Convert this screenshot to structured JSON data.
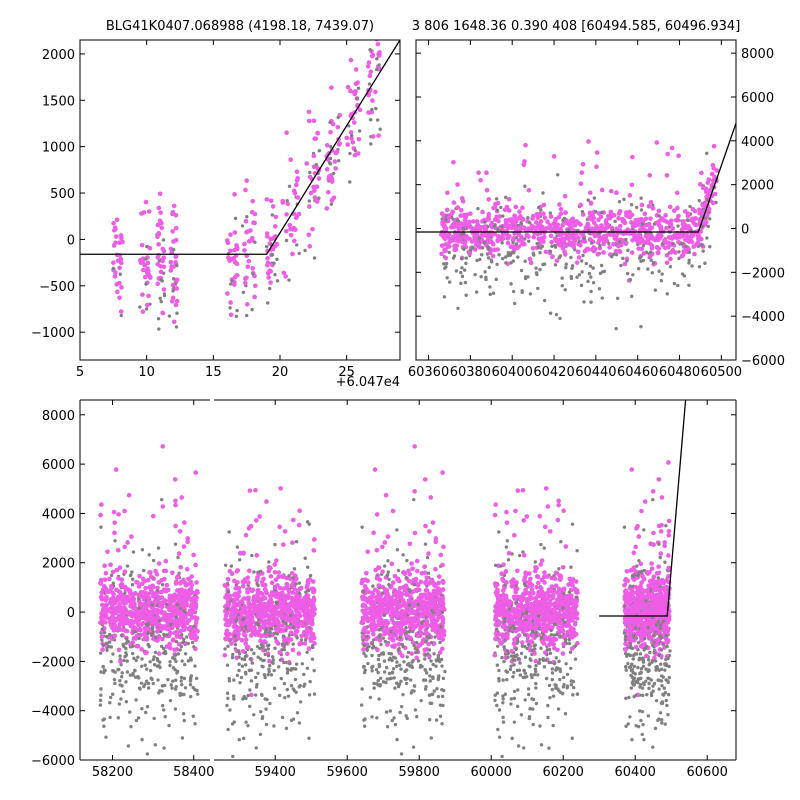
{
  "chart_data": [
    {
      "type": "scatter",
      "title": "BLG41K0407.068988 (4198.18, 7439.07)",
      "xlim": [
        5,
        29
      ],
      "ylim": [
        -1300,
        2150
      ],
      "x_offset_label": "+6.047e4",
      "xticks": [
        5,
        10,
        15,
        20,
        25
      ],
      "yticks": [
        -1000,
        -500,
        0,
        500,
        1000,
        1500,
        2000
      ],
      "model_line": [
        [
          5,
          -160
        ],
        [
          19,
          -160
        ],
        [
          29,
          2150
        ]
      ],
      "colors": {
        "flux": "#ee5de6",
        "alt": "#808080",
        "model": "#000000"
      }
    },
    {
      "type": "scatter",
      "title": "3 806 1648.36 0.390 408 [60494.585, 60496.934]",
      "xlim": [
        60354,
        60507
      ],
      "ylim": [
        -6000,
        8600
      ],
      "xticks": [
        60360,
        60380,
        60400,
        60420,
        60440,
        60460,
        60480,
        60500
      ],
      "yticks": [
        -6000,
        -4000,
        -2000,
        0,
        2000,
        4000,
        6000,
        8000
      ],
      "model_line": [
        [
          60354,
          -160
        ],
        [
          60489,
          -160
        ],
        [
          60507,
          4800
        ]
      ],
      "colors": {
        "flux": "#ee5de6",
        "alt": "#808080",
        "model": "#000000"
      }
    },
    {
      "type": "scatter",
      "title": "",
      "segments": [
        {
          "xlim": [
            58120,
            58440
          ],
          "xticks": [
            58200,
            58400
          ]
        },
        {
          "xlim": [
            59230,
            60680
          ],
          "xticks": [
            59400,
            59600,
            59800,
            60000,
            60200,
            60400,
            60600
          ]
        }
      ],
      "ylim": [
        -6000,
        8600
      ],
      "yticks": [
        -6000,
        -4000,
        -2000,
        0,
        2000,
        4000,
        6000,
        8000
      ],
      "seasons": [
        {
          "start": 58170,
          "end": 58410
        },
        {
          "start": 59260,
          "end": 59510
        },
        {
          "start": 59640,
          "end": 59870
        },
        {
          "start": 60010,
          "end": 60240
        },
        {
          "start": 60370,
          "end": 60495
        }
      ],
      "model_line": [
        [
          60300,
          -160
        ],
        [
          60489,
          -160
        ],
        [
          60540,
          8600
        ]
      ],
      "colors": {
        "flux": "#ee5de6",
        "alt": "#808080",
        "model": "#000000"
      }
    }
  ]
}
